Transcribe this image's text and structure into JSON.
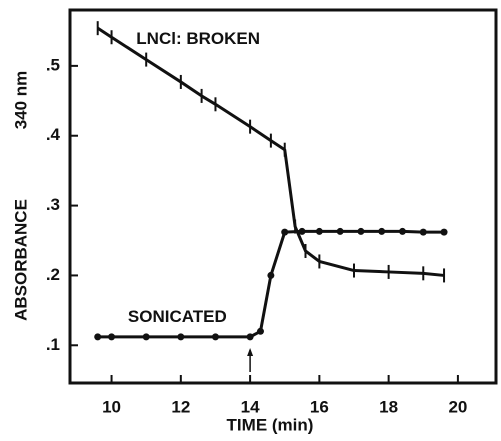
{
  "chart_data": {
    "type": "line",
    "x_label": "TIME (min)",
    "y_label": "ABSORBANCE",
    "y_label_units": "340 nm",
    "annotations": [
      {
        "text": "LNCl:  BROKEN",
        "x": 12.5,
        "y": 0.538
      },
      {
        "text": "SONICATED",
        "x": 11.9,
        "y": 0.14
      }
    ],
    "arrow_x": 14,
    "xlim": [
      8.8,
      21.1
    ],
    "ylim": [
      0.046,
      0.58
    ],
    "xticks": [
      10,
      12,
      14,
      16,
      18,
      20
    ],
    "yticks": [
      {
        "value": 0.1,
        "label": ".1"
      },
      {
        "value": 0.2,
        "label": ".2"
      },
      {
        "value": 0.3,
        "label": ".3"
      },
      {
        "value": 0.4,
        "label": ".4"
      },
      {
        "value": 0.5,
        "label": ".5"
      }
    ],
    "series": [
      {
        "name": "BROKEN",
        "color": "#111111",
        "marker": "tick",
        "x": [
          9.6,
          10,
          11,
          12,
          12.6,
          13,
          14,
          14.6,
          15,
          15.3,
          15.6,
          16,
          17,
          18,
          19,
          19.6
        ],
        "values": [
          0.554,
          0.541,
          0.509,
          0.477,
          0.457,
          0.445,
          0.413,
          0.393,
          0.38,
          0.27,
          0.235,
          0.22,
          0.207,
          0.205,
          0.203,
          0.2
        ]
      },
      {
        "name": "SONICATED",
        "color": "#111111",
        "marker": "dot",
        "x": [
          9.6,
          10,
          11,
          12,
          13,
          14,
          14.3,
          14.6,
          15,
          15.5,
          16,
          16.6,
          17.2,
          17.8,
          18.4,
          19,
          19.6
        ],
        "values": [
          0.112,
          0.112,
          0.112,
          0.112,
          0.112,
          0.112,
          0.12,
          0.2,
          0.262,
          0.263,
          0.263,
          0.263,
          0.263,
          0.263,
          0.263,
          0.262,
          0.262
        ]
      }
    ]
  }
}
